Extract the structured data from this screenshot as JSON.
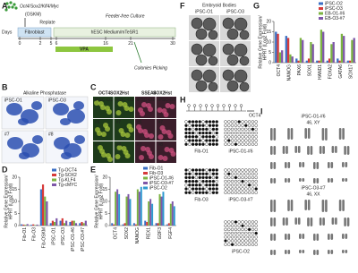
{
  "panels": {
    "A": {
      "letter": "A",
      "factors": "Oct4/Sox2/Klf4/Myc",
      "factors_abbr": "(OSKM)",
      "days_label": "Days",
      "replate": "Replate",
      "feeder_free": "Feeder-free Culture",
      "fibroblast": "Fibroblast",
      "medium": "hESC Medium/mTeSR1",
      "vpa": "VPA",
      "colonies": "Colonies Picking",
      "days": [
        "0",
        "2",
        "5",
        "6",
        "16",
        "21",
        "30"
      ]
    },
    "B": {
      "letter": "B",
      "title": "Alkaline Phosphatase",
      "cells": [
        "iPSC-O1",
        "iPSC-O3",
        "#7",
        "#8"
      ]
    },
    "C": {
      "letter": "C",
      "headers": [
        [
          "OCT4",
          "SOX2",
          "Hst"
        ],
        [
          "SSEA4",
          "SOX2",
          "Hst"
        ]
      ],
      "cells": [
        "iPSC-O1",
        "iPSC-O3",
        "iPSC-O1",
        "iPSC-O3",
        "#6",
        "#7",
        "#6",
        "#7",
        "#7",
        "#8",
        "#7",
        "#8"
      ]
    },
    "F": {
      "letter": "F",
      "title": "Embryoid Bodies",
      "columns": [
        "iPSC-O1",
        "iPSC-O3"
      ]
    },
    "H": {
      "letter": "H",
      "gene": "OCT4",
      "groups": [
        "Fib-O1",
        "iPSC-O1-#6",
        "Fib-O3",
        "iPSC-O3-#7",
        "iPSC-O2"
      ]
    },
    "I": {
      "letter": "I",
      "karyotypes": [
        {
          "name": "iPSC-O1-#6",
          "karyotype": "46, XY"
        },
        {
          "name": "iPSC-O3-#7",
          "karyotype": "46, XX"
        }
      ]
    }
  },
  "chart_data": [
    {
      "type": "bar",
      "letter": "D",
      "ylabel": [
        "Relative Gene Expression/",
        "HPRT (Log2 Fold)"
      ],
      "categories": [
        "Fib-O1",
        "Fib-O3",
        "Fib-OSKM",
        "iPSC-O1",
        "iPSC-O3",
        "iPSC-O1-#6",
        "iPSC-O3-#7"
      ],
      "series": [
        {
          "name": "Tg-OCT4",
          "color": "#3b6fc4",
          "values": [
            0.5,
            0.3,
            15,
            1,
            2,
            1.5,
            1
          ]
        },
        {
          "name": "Tg-SOX2",
          "color": "#d63a3a",
          "values": [
            0.4,
            0.5,
            17,
            2,
            3,
            2,
            1.5
          ]
        },
        {
          "name": "Tg-KLF4",
          "color": "#7cb342",
          "values": [
            0.3,
            0.2,
            12,
            1.5,
            1,
            2,
            1
          ]
        },
        {
          "name": "Tg-cMYC",
          "color": "#7e57a8",
          "values": [
            0.6,
            0.4,
            10,
            3,
            2,
            1,
            2
          ]
        }
      ],
      "ylim": [
        0,
        20
      ],
      "yticks": [
        0,
        5,
        10,
        15,
        20
      ]
    },
    {
      "type": "bar",
      "letter": "E",
      "ylabel": [
        "Relative Gene Expression/",
        "HPRT (Log2 Fold)"
      ],
      "categories": [
        "OCT4",
        "SOX2",
        "NANOG",
        "REX1",
        "GDF3",
        "FGF4"
      ],
      "series": [
        {
          "name": "Fib-O1",
          "color": "#3b6fc4",
          "values": [
            1,
            0.5,
            1,
            2,
            1,
            0.5
          ]
        },
        {
          "name": "Fib-O3",
          "color": "#d63a3a",
          "values": [
            0.5,
            1,
            0.5,
            1.5,
            1,
            1
          ]
        },
        {
          "name": "iPSC-O1-#6",
          "color": "#7cb342",
          "values": [
            14,
            12,
            15,
            10,
            13,
            9
          ]
        },
        {
          "name": "iPSC-O3-#7",
          "color": "#7e57a8",
          "values": [
            15,
            13,
            14,
            11,
            12,
            10
          ]
        },
        {
          "name": "iPSC-O2",
          "color": "#2e9ad0",
          "values": [
            13,
            11,
            16,
            9,
            14,
            8
          ]
        }
      ],
      "ylim": [
        0,
        20
      ],
      "yticks": [
        0,
        5,
        10,
        15,
        20
      ]
    },
    {
      "type": "bar",
      "letter": "G",
      "ylabel": [
        "Relative Gene Expression/",
        "HPRT (Log2 Fold)"
      ],
      "categories": [
        "OCT4",
        "NANOG",
        "PAX6",
        "SOX1",
        "HAND1",
        "FOXA2",
        "GATA6",
        "SOX17"
      ],
      "series": [
        {
          "name": "iPSC-O2",
          "color": "#3b6fc4",
          "values": [
            15,
            13,
            2,
            1,
            1,
            1,
            2,
            1
          ]
        },
        {
          "name": "iPSC-O3",
          "color": "#d63a3a",
          "values": [
            14,
            12,
            1,
            2,
            1,
            2,
            1,
            1
          ]
        },
        {
          "name": "EB-O1-#6",
          "color": "#7cb342",
          "values": [
            5,
            4,
            12,
            10,
            16,
            9,
            14,
            11
          ]
        },
        {
          "name": "EB-O3-#7",
          "color": "#7e57a8",
          "values": [
            6,
            3,
            11,
            9,
            15,
            10,
            13,
            12
          ]
        }
      ],
      "ylim": [
        0,
        20
      ],
      "yticks": [
        0,
        5,
        10,
        15,
        20
      ]
    }
  ]
}
